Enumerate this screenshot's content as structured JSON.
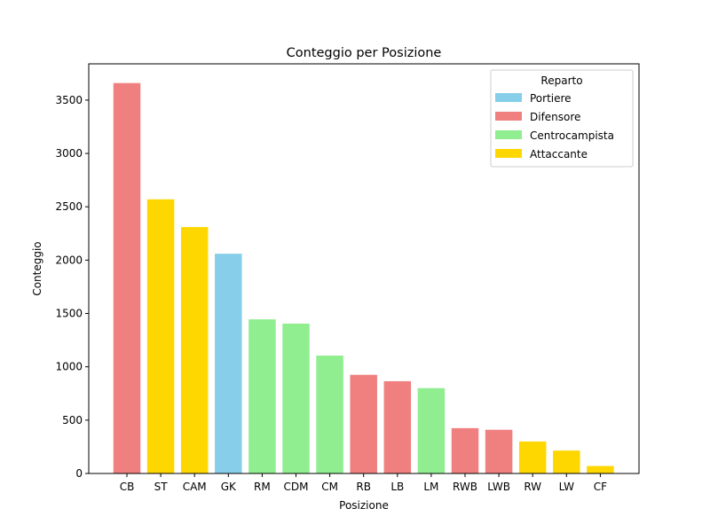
{
  "chart_data": {
    "type": "bar",
    "title": "Conteggio per Posizione",
    "xlabel": "Posizione",
    "ylabel": "Conteggio",
    "ylim": [
      0,
      3840
    ],
    "yticks": [
      0,
      500,
      1000,
      1500,
      2000,
      2500,
      3000,
      3500
    ],
    "categories": [
      "CB",
      "ST",
      "CAM",
      "GK",
      "RM",
      "CDM",
      "CM",
      "RB",
      "LB",
      "LM",
      "RWB",
      "LWB",
      "RW",
      "LW",
      "CF"
    ],
    "values": [
      3660,
      2570,
      2310,
      2060,
      1445,
      1405,
      1105,
      925,
      865,
      800,
      425,
      410,
      300,
      215,
      70
    ],
    "groups": [
      "Difensore",
      "Attaccante",
      "Attaccante",
      "Portiere",
      "Centrocampista",
      "Centrocampista",
      "Centrocampista",
      "Difensore",
      "Difensore",
      "Centrocampista",
      "Difensore",
      "Difensore",
      "Attaccante",
      "Attaccante",
      "Attaccante"
    ],
    "legend": {
      "title": "Reparto",
      "position": "top-right",
      "entries": [
        {
          "label": "Portiere",
          "color": "#87ceeb"
        },
        {
          "label": "Difensore",
          "color": "#f08080"
        },
        {
          "label": "Centrocampista",
          "color": "#90ee90"
        },
        {
          "label": "Attaccante",
          "color": "#ffd700"
        }
      ]
    },
    "grid": false
  }
}
